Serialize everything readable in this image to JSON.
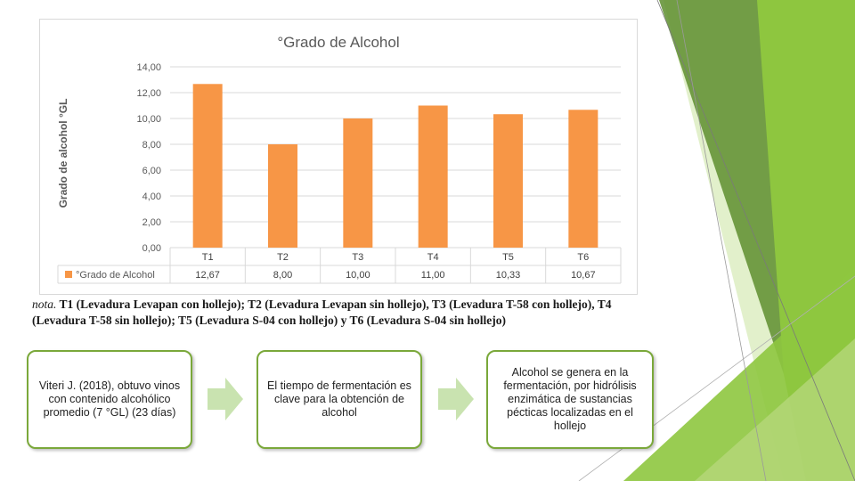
{
  "colors": {
    "bar": "#f79646",
    "green_dark": "#5e8e2f",
    "green_mid": "#8ec63f",
    "green_light": "#cfe6a8",
    "arrow": "#c9e3b0",
    "box_border": "#7aa83a"
  },
  "chart_data": {
    "type": "bar",
    "title": "°Grado de Alcohol",
    "ylabel": "Grado de alcohol °GL",
    "xlabel": "",
    "categories": [
      "T1",
      "T2",
      "T3",
      "T4",
      "T5",
      "T6"
    ],
    "series": [
      {
        "name": "°Grado de Alcohol",
        "values": [
          12.67,
          8.0,
          10.0,
          11.0,
          10.33,
          10.67
        ],
        "labels": [
          "12,67",
          "8,00",
          "10,00",
          "11,00",
          "10,33",
          "10,67"
        ]
      }
    ],
    "ylim": [
      0,
      14
    ],
    "yticks": [
      "14,00",
      "12,00",
      "10,00",
      "8,00",
      "6,00",
      "4,00",
      "2,00",
      "0,00"
    ],
    "grid": true,
    "legend": "data-table"
  },
  "note": {
    "lead": "nota.",
    "text": " T1 (Levadura Levapan con hollejo); T2 (Levadura Levapan sin hollejo), T3 (Levadura T-58 con hollejo), T4 (Levadura T-58 sin hollejo); T5 (Levadura S-04 con hollejo) y T6 (Levadura S-04 sin hollejo)"
  },
  "flow": {
    "box1": "Viteri J. (2018), obtuvo vinos con contenido alcohólico  promedio (7 °GL) (23 días)",
    "box2": "El tiempo de fermentación es clave para la obtención de alcohol",
    "box3": "Alcohol se genera en la fermentación, por hidrólisis enzimática de sustancias pécticas localizadas en el hollejo"
  }
}
